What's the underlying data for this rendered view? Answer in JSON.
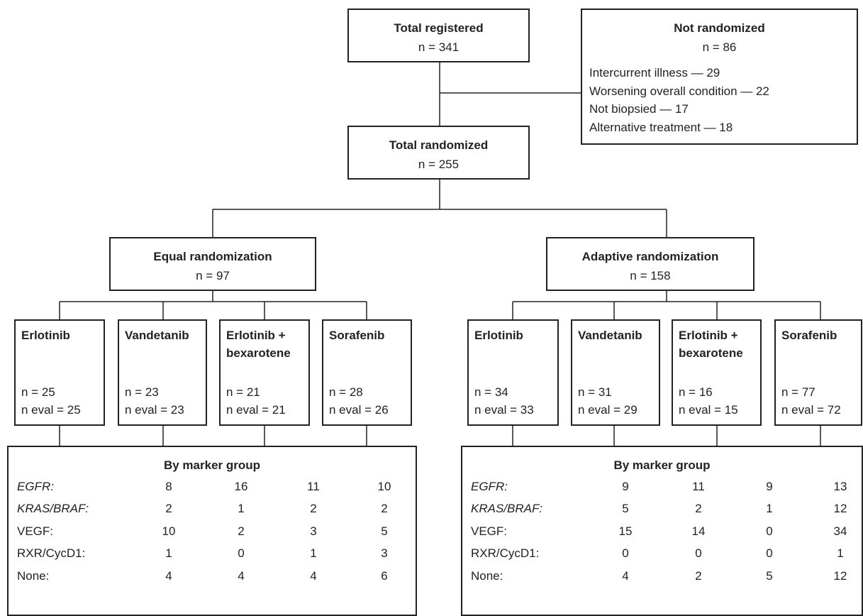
{
  "nodes": [
    {
      "title": "Total registered",
      "n": "n = 341"
    },
    {
      "title": "Not randomized",
      "n": "n = 86",
      "items": [
        "Intercurrent illness — 29",
        "Worsening overall condition — 22",
        "Not biopsied — 17",
        "Alternative treatment — 18"
      ]
    },
    {
      "title": "Total randomized",
      "n": "n = 255"
    },
    {
      "title": "Equal randomization",
      "n": "n = 97"
    },
    {
      "title": "Adaptive randomization",
      "n": "n = 158"
    }
  ],
  "arms": [
    [
      {
        "name": "Erlotinib",
        "n": "n = 25",
        "n_eval": "n eval = 25"
      },
      {
        "name": "Vandetanib",
        "n": "n = 23",
        "n_eval": "n eval = 23"
      },
      {
        "name": "Erlotinib + bexarotene",
        "n": "n = 21",
        "n_eval": "n eval = 21"
      },
      {
        "name": "Sorafenib",
        "n": "n = 28",
        "n_eval": "n eval = 26"
      }
    ],
    [
      {
        "name": "Erlotinib",
        "n": "n = 34",
        "n_eval": "n eval = 33"
      },
      {
        "name": "Vandetanib",
        "n": "n = 31",
        "n_eval": "n eval = 29"
      },
      {
        "name": "Erlotinib + bexarotene",
        "n": "n = 16",
        "n_eval": "n eval = 15"
      },
      {
        "name": "Sorafenib",
        "n": "n = 77",
        "n_eval": "n eval = 72"
      }
    ]
  ],
  "marker_tables": [
    {
      "title": "By marker group",
      "rows": [
        {
          "label": "EGFR:",
          "values": [
            8,
            16,
            11,
            10
          ]
        },
        {
          "label": "KRAS/BRAF:",
          "values": [
            2,
            1,
            2,
            2
          ]
        },
        {
          "label": "VEGF:",
          "values": [
            10,
            2,
            3,
            5
          ]
        },
        {
          "label": "RXR/CycD1:",
          "values": [
            1,
            0,
            1,
            3
          ]
        },
        {
          "label": "None:",
          "values": [
            4,
            4,
            4,
            6
          ]
        }
      ]
    },
    {
      "title": "By marker group",
      "rows": [
        {
          "label": "EGFR:",
          "values": [
            9,
            11,
            9,
            13
          ]
        },
        {
          "label": "KRAS/BRAF:",
          "values": [
            5,
            2,
            1,
            12
          ]
        },
        {
          "label": "VEGF:",
          "values": [
            15,
            14,
            0,
            34
          ]
        },
        {
          "label": "RXR/CycD1:",
          "values": [
            0,
            0,
            0,
            1
          ]
        },
        {
          "label": "None:",
          "values": [
            4,
            2,
            5,
            12
          ]
        }
      ]
    }
  ]
}
